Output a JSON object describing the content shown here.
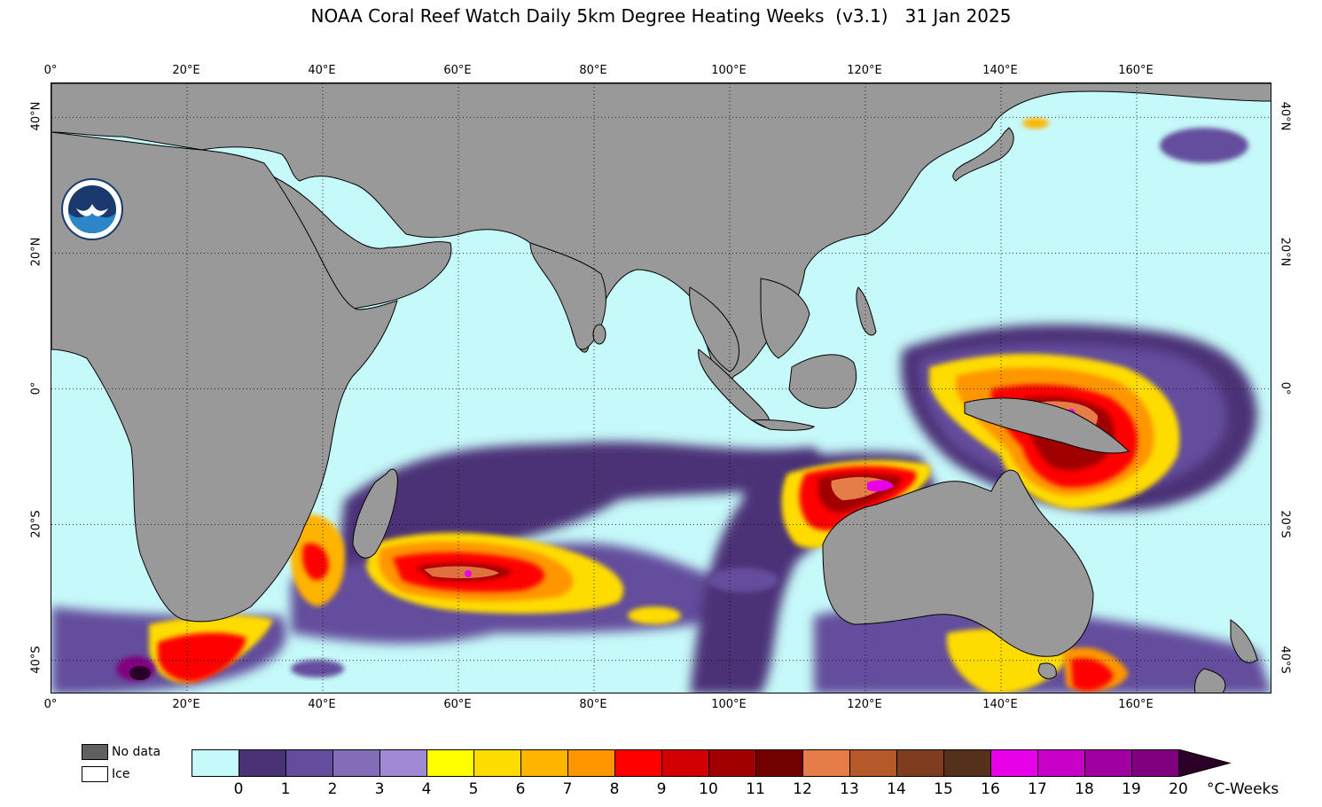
{
  "title": "NOAA Coral Reef Watch Daily 5km Degree Heating Weeks  (v3.1)   31 Jan 2025",
  "map": {
    "type": "map",
    "lon_range": [
      0,
      180
    ],
    "lat_range": [
      -45,
      45
    ],
    "lon_ticks": [
      "0°",
      "20°E",
      "40°E",
      "60°E",
      "80°E",
      "100°E",
      "120°E",
      "140°E",
      "160°E"
    ],
    "lat_ticks_left": [
      "40°N",
      "20°N",
      "0°",
      "20°S",
      "40°S"
    ],
    "lat_ticks_right": [
      "40°N",
      "20°N",
      "0°",
      "20°S",
      "40°S"
    ],
    "gridlines": true,
    "ocean_color": "#c6f9f9",
    "land_color": "#999999",
    "logo": "noaa-logo-icon"
  },
  "legend": {
    "no_data_label": "No data",
    "no_data_color": "#606060",
    "ice_label": "Ice",
    "ice_color": "#ffffff",
    "units": "°C-Weeks",
    "ticks": [
      "0",
      "1",
      "2",
      "3",
      "4",
      "5",
      "6",
      "7",
      "8",
      "9",
      "10",
      "11",
      "12",
      "13",
      "14",
      "15",
      "16",
      "17",
      "18",
      "19",
      "20"
    ],
    "colors": [
      "#c6f9f9",
      "#4b3277",
      "#634d9c",
      "#836cb8",
      "#a08ad6",
      "#ffff00",
      "#ffdc00",
      "#ffb400",
      "#ff9600",
      "#ff0000",
      "#d20000",
      "#a00000",
      "#720000",
      "#e67d48",
      "#b45a2a",
      "#7f3c1e",
      "#55301a",
      "#e800e8",
      "#c800c8",
      "#a000a0",
      "#800080"
    ],
    "overflow_color": "#2a0029"
  }
}
